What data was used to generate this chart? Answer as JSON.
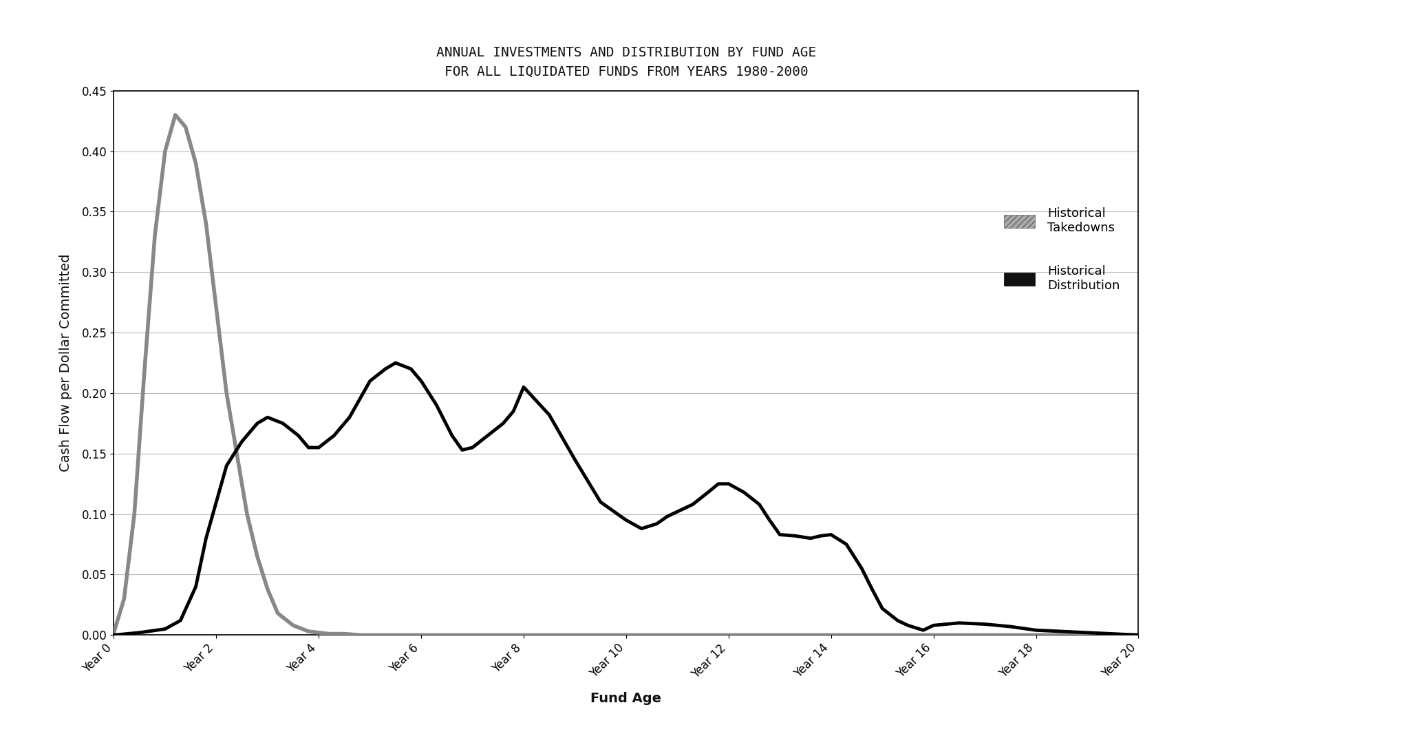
{
  "title_line1": "ANNUAL INVESTMENTS AND DISTRIBUTION BY FUND AGE",
  "title_line2": "FOR ALL LIQUIDATED FUNDS FROM YEARS 1980-2000",
  "xlabel": "Fund Age",
  "ylabel": "Cash Flow per Dollar Committed",
  "xlim": [
    0,
    20
  ],
  "ylim": [
    0.0,
    0.45
  ],
  "yticks": [
    0.0,
    0.05,
    0.1,
    0.15,
    0.2,
    0.25,
    0.3,
    0.35,
    0.4,
    0.45
  ],
  "xtick_labels": [
    "Year 0",
    "Year 2",
    "Year 4",
    "Year 6",
    "Year 8",
    "Year 10",
    "Year 12",
    "Year 14",
    "Year 16",
    "Year 18",
    "Year 20"
  ],
  "xtick_positions": [
    0,
    2,
    4,
    6,
    8,
    10,
    12,
    14,
    16,
    18,
    20
  ],
  "takedowns_x": [
    0,
    0.2,
    0.4,
    0.6,
    0.8,
    1.0,
    1.2,
    1.4,
    1.6,
    1.8,
    2.0,
    2.2,
    2.4,
    2.6,
    2.8,
    3.0,
    3.2,
    3.5,
    3.8,
    4.0,
    4.2,
    4.5,
    4.8,
    5.0,
    5.5,
    6.0,
    7.0,
    8.0,
    9.0,
    10.0,
    11.0,
    12.0,
    13.0,
    14.0,
    15.0,
    16.0,
    17.0,
    18.0,
    19.0,
    20.0
  ],
  "takedowns_y": [
    0.002,
    0.03,
    0.1,
    0.22,
    0.33,
    0.4,
    0.43,
    0.42,
    0.39,
    0.34,
    0.27,
    0.2,
    0.15,
    0.1,
    0.065,
    0.038,
    0.018,
    0.008,
    0.003,
    0.002,
    0.001,
    0.001,
    0.0,
    0.0,
    0.0,
    0.0,
    0.0,
    0.0,
    0.0,
    0.0,
    0.0,
    0.0,
    0.0,
    0.0,
    0.0,
    0.0,
    0.0,
    0.0,
    0.0,
    0.0
  ],
  "distributions_x": [
    0,
    0.5,
    1.0,
    1.3,
    1.6,
    1.8,
    2.0,
    2.2,
    2.5,
    2.8,
    3.0,
    3.3,
    3.6,
    3.8,
    4.0,
    4.3,
    4.6,
    4.8,
    5.0,
    5.3,
    5.5,
    5.8,
    6.0,
    6.3,
    6.6,
    6.8,
    7.0,
    7.3,
    7.6,
    7.8,
    8.0,
    8.5,
    9.0,
    9.5,
    10.0,
    10.3,
    10.6,
    10.8,
    11.0,
    11.3,
    11.6,
    11.8,
    12.0,
    12.3,
    12.6,
    12.8,
    13.0,
    13.3,
    13.6,
    13.8,
    14.0,
    14.3,
    14.6,
    14.8,
    15.0,
    15.3,
    15.5,
    15.8,
    16.0,
    16.5,
    17.0,
    17.5,
    18.0,
    18.5,
    19.0,
    19.5,
    20.0
  ],
  "distributions_y": [
    0.0,
    0.002,
    0.005,
    0.012,
    0.04,
    0.08,
    0.11,
    0.14,
    0.16,
    0.175,
    0.18,
    0.175,
    0.165,
    0.155,
    0.155,
    0.165,
    0.18,
    0.195,
    0.21,
    0.22,
    0.225,
    0.22,
    0.21,
    0.19,
    0.165,
    0.153,
    0.155,
    0.165,
    0.175,
    0.185,
    0.205,
    0.182,
    0.145,
    0.11,
    0.095,
    0.088,
    0.092,
    0.098,
    0.102,
    0.108,
    0.118,
    0.125,
    0.125,
    0.118,
    0.108,
    0.095,
    0.083,
    0.082,
    0.08,
    0.082,
    0.083,
    0.075,
    0.055,
    0.038,
    0.022,
    0.012,
    0.008,
    0.004,
    0.008,
    0.01,
    0.009,
    0.007,
    0.004,
    0.003,
    0.002,
    0.001,
    0.0
  ],
  "takedowns_color": "#888888",
  "distributions_color": "#000000",
  "takedowns_linewidth": 4.0,
  "distributions_linewidth": 3.5,
  "background_color": "#ffffff",
  "grid_color": "#bbbbbb",
  "title_fontsize": 14,
  "label_fontsize": 14,
  "tick_fontsize": 12,
  "legend_fontsize": 13
}
